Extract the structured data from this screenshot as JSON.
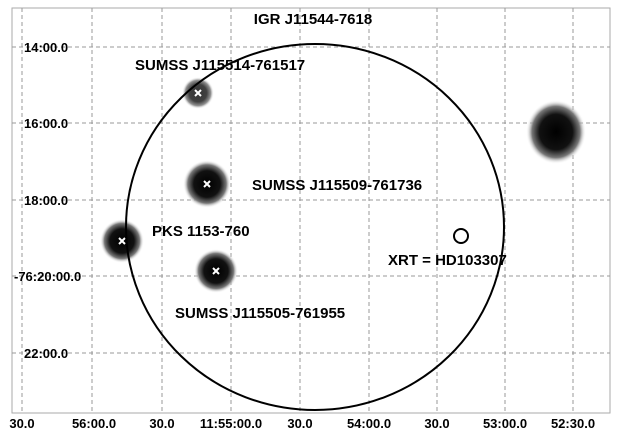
{
  "title": "IGR J11544-7618",
  "y_axis_labels": [
    "14:00.0",
    "16:00.0",
    "18:00.0",
    "-76:20:00.0",
    "22:00.0"
  ],
  "x_axis_labels": [
    "30.0",
    "56:00.0",
    "30.0",
    "11:55:00.0",
    "30.0",
    "54:00.0",
    "30.0",
    "53:00.0",
    "52:30.0"
  ],
  "sources": [
    "SUMSS J115514-761517",
    "SUMSS J115509-761736",
    "PKS 1153-760",
    "XRT = HD103307",
    "SUMSS J115505-761955"
  ]
}
